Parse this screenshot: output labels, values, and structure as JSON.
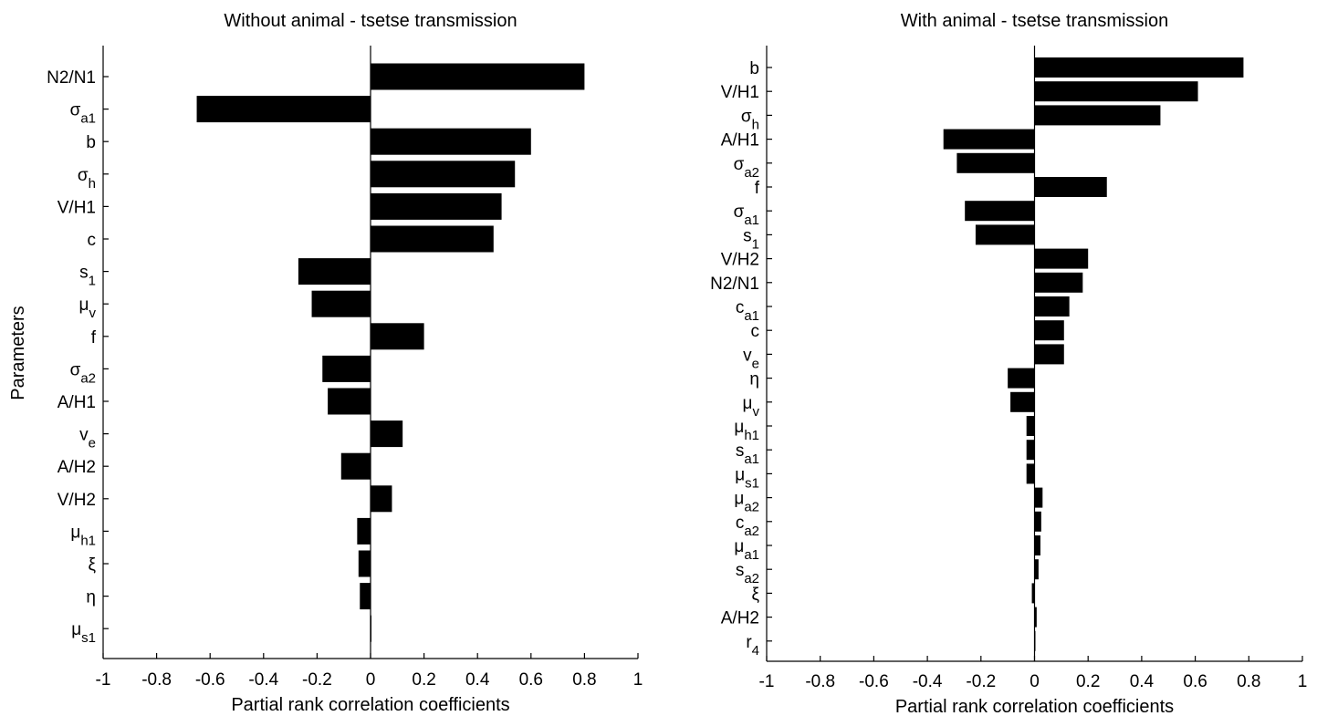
{
  "figure": {
    "ylabel": "Parameters"
  },
  "chart_data": [
    {
      "type": "bar",
      "orientation": "horizontal",
      "title": "Without animal - tsetse transmission",
      "xlabel": "Partial rank correlation coefficients",
      "ylabel": "Parameters",
      "xlim": [
        -1,
        1
      ],
      "xticks": [
        "-1",
        "-0.8",
        "-0.6",
        "-0.4",
        "-0.2",
        "0",
        "0.2",
        "0.4",
        "0.6",
        "0.8",
        "1"
      ],
      "categories": [
        {
          "main": "N2/N1",
          "sub": ""
        },
        {
          "main": "σ",
          "sub": "a1"
        },
        {
          "main": "b",
          "sub": ""
        },
        {
          "main": "σ",
          "sub": "h"
        },
        {
          "main": "V/H1",
          "sub": ""
        },
        {
          "main": "c",
          "sub": ""
        },
        {
          "main": "s",
          "sub": "1"
        },
        {
          "main": "μ",
          "sub": "v"
        },
        {
          "main": "f",
          "sub": ""
        },
        {
          "main": "σ",
          "sub": "a2"
        },
        {
          "main": "A/H1",
          "sub": ""
        },
        {
          "main": "v",
          "sub": "e"
        },
        {
          "main": "A/H2",
          "sub": ""
        },
        {
          "main": "V/H2",
          "sub": ""
        },
        {
          "main": "μ",
          "sub": "h1"
        },
        {
          "main": "ξ",
          "sub": ""
        },
        {
          "main": "η",
          "sub": ""
        },
        {
          "main": "μ",
          "sub": "s1"
        }
      ],
      "values": [
        0.8,
        -0.65,
        0.6,
        0.54,
        0.49,
        0.46,
        -0.27,
        -0.22,
        0.2,
        -0.18,
        -0.16,
        0.12,
        -0.11,
        0.08,
        -0.05,
        -0.045,
        -0.04,
        0.002
      ],
      "bar_color": "#000000",
      "grid": false
    },
    {
      "type": "bar",
      "orientation": "horizontal",
      "title": "With animal - tsetse transmission",
      "xlabel": "Partial rank correlation coefficients",
      "ylabel": "",
      "xlim": [
        -1,
        1
      ],
      "xticks": [
        "-1",
        "-0.8",
        "-0.6",
        "-0.4",
        "-0.2",
        "0",
        "0.2",
        "0.4",
        "0.6",
        "0.8",
        "1"
      ],
      "categories": [
        {
          "main": "b",
          "sub": ""
        },
        {
          "main": "V/H1",
          "sub": ""
        },
        {
          "main": "σ",
          "sub": "h"
        },
        {
          "main": "A/H1",
          "sub": ""
        },
        {
          "main": "σ",
          "sub": "a2"
        },
        {
          "main": "f",
          "sub": ""
        },
        {
          "main": "σ",
          "sub": "a1"
        },
        {
          "main": "s",
          "sub": "1"
        },
        {
          "main": "V/H2",
          "sub": ""
        },
        {
          "main": "N2/N1",
          "sub": ""
        },
        {
          "main": "c",
          "sub": "a1"
        },
        {
          "main": "c",
          "sub": ""
        },
        {
          "main": "v",
          "sub": "e"
        },
        {
          "main": "η",
          "sub": ""
        },
        {
          "main": "μ",
          "sub": "v"
        },
        {
          "main": "μ",
          "sub": "h1"
        },
        {
          "main": "s",
          "sub": "a1"
        },
        {
          "main": "μ",
          "sub": "s1"
        },
        {
          "main": "μ",
          "sub": "a2"
        },
        {
          "main": "c",
          "sub": "a2"
        },
        {
          "main": "μ",
          "sub": "a1"
        },
        {
          "main": "s",
          "sub": "a2"
        },
        {
          "main": "ξ",
          "sub": ""
        },
        {
          "main": "A/H2",
          "sub": ""
        },
        {
          "main": "r",
          "sub": "4"
        }
      ],
      "values": [
        0.78,
        0.61,
        0.47,
        -0.34,
        -0.29,
        0.27,
        -0.26,
        -0.22,
        0.2,
        0.18,
        0.13,
        0.11,
        0.11,
        -0.1,
        -0.09,
        -0.03,
        -0.03,
        -0.03,
        0.03,
        0.025,
        0.022,
        0.015,
        -0.01,
        0.008,
        0.0
      ],
      "bar_color": "#000000",
      "grid": false
    }
  ]
}
